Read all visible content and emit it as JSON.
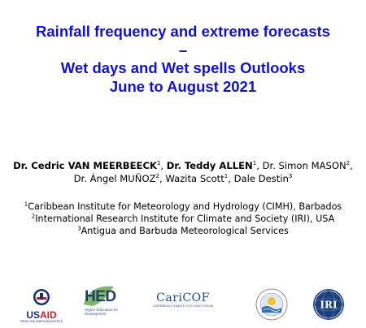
{
  "title": {
    "line1": "Rainfall frequency and extreme forecasts",
    "line2": "–",
    "line3": "Wet days and Wet spells Outlooks",
    "line4": "June to August 2021"
  },
  "authors": [
    {
      "name": "Dr. Cedric VAN MEERBEECK",
      "sup": "1",
      "bold": true
    },
    {
      "name": "Dr. Teddy ALLEN",
      "sup": "1",
      "bold": true
    },
    {
      "name": "Dr. Simon MASON",
      "sup": "2",
      "bold": false
    },
    {
      "name": "Dr. Ángel MUÑOZ",
      "sup": "2",
      "bold": false
    },
    {
      "name": "Wazita Scott",
      "sup": "1",
      "bold": false
    },
    {
      "name": "Dale Destin",
      "sup": "3",
      "bold": false
    }
  ],
  "affiliations": [
    {
      "sup": "1",
      "text": "Caribbean Institute for Meteorology and Hydrology (CIMH), Barbados"
    },
    {
      "sup": "2",
      "text": "International Research Institute for Climate and Society (IRI), USA"
    },
    {
      "sup": "3",
      "text": "Antigua and Barbuda Meteorological Services"
    }
  ],
  "logos": {
    "usaid": {
      "wordmark_a": "US",
      "wordmark_b": "AID",
      "tagline": "FROM THE AMERICAN PEOPLE"
    },
    "hed": {
      "wordmark": "HED",
      "tagline": "Higher Education for Development"
    },
    "caricof": {
      "wordmark": "CariCOF",
      "tagline": "CARIBBEAN CLIMATE OUTLOOK FORUM"
    },
    "cimh": {
      "label": "CIMH"
    },
    "iri": {
      "label": "IRI"
    }
  },
  "colors": {
    "title": "#1212c8",
    "usaid_red": "#c21e2c",
    "usaid_blue": "#1b2f6e",
    "hed_blue": "#1f3f64",
    "hed_green": "#6aa84f",
    "caricof_blue": "#244a8a",
    "iri_blue": "#1d3f7a"
  }
}
